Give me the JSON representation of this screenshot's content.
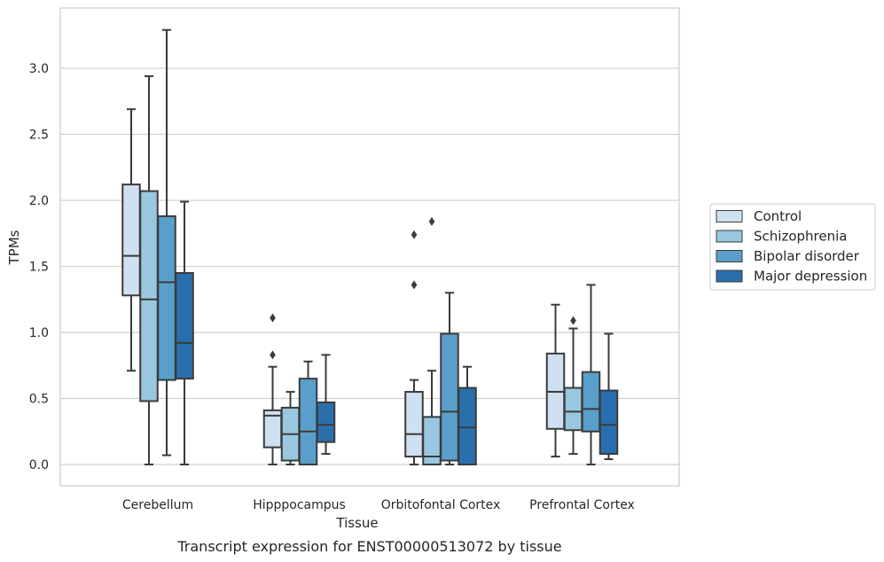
{
  "caption": "Transcript expression for ENST00000513072 by tissue",
  "chart_data": {
    "type": "box",
    "xlabel": "Tissue",
    "ylabel": "TPMs",
    "ylim": [
      -0.16,
      3.4
    ],
    "yticks": [
      0.0,
      0.5,
      1.0,
      1.5,
      2.0,
      2.5,
      3.0
    ],
    "ytick_labels": [
      "0.0",
      "0.5",
      "1.0",
      "1.5",
      "2.0",
      "2.5",
      "3.0"
    ],
    "grid": "horizontal",
    "legend_position": "right",
    "categories": [
      "Cerebellum",
      "Hipppocampus",
      "Orbitofontal Cortex",
      "Prefrontal Cortex"
    ],
    "series": [
      {
        "name": "Control",
        "color": "#cfe0f0",
        "boxes": [
          {
            "whislo": 0.71,
            "q1": 1.28,
            "med": 1.58,
            "q3": 2.12,
            "whishi": 2.69,
            "fliers": []
          },
          {
            "whislo": 0.0,
            "q1": 0.13,
            "med": 0.37,
            "q3": 0.41,
            "whishi": 0.74,
            "fliers": [
              0.83,
              1.11
            ]
          },
          {
            "whislo": 0.0,
            "q1": 0.06,
            "med": 0.23,
            "q3": 0.55,
            "whishi": 0.64,
            "fliers": [
              1.36,
              1.74
            ]
          },
          {
            "whislo": 0.06,
            "q1": 0.27,
            "med": 0.55,
            "q3": 0.84,
            "whishi": 1.21,
            "fliers": []
          }
        ]
      },
      {
        "name": "Schizophrenia",
        "color": "#9ac7e0",
        "boxes": [
          {
            "whislo": 0.0,
            "q1": 0.48,
            "med": 1.25,
            "q3": 2.07,
            "whishi": 2.94,
            "fliers": []
          },
          {
            "whislo": 0.0,
            "q1": 0.03,
            "med": 0.23,
            "q3": 0.43,
            "whishi": 0.55,
            "fliers": []
          },
          {
            "whislo": 0.0,
            "q1": 0.0,
            "med": 0.06,
            "q3": 0.36,
            "whishi": 0.71,
            "fliers": [
              1.84
            ]
          },
          {
            "whislo": 0.08,
            "q1": 0.26,
            "med": 0.4,
            "q3": 0.58,
            "whishi": 1.03,
            "fliers": [
              1.09
            ]
          }
        ]
      },
      {
        "name": "Bipolar disorder",
        "color": "#5a9fcb",
        "boxes": [
          {
            "whislo": 0.07,
            "q1": 0.64,
            "med": 1.38,
            "q3": 1.88,
            "whishi": 3.29,
            "fliers": []
          },
          {
            "whislo": 0.0,
            "q1": 0.0,
            "med": 0.25,
            "q3": 0.65,
            "whishi": 0.78,
            "fliers": []
          },
          {
            "whislo": 0.0,
            "q1": 0.03,
            "med": 0.4,
            "q3": 0.99,
            "whishi": 1.3,
            "fliers": []
          },
          {
            "whislo": 0.0,
            "q1": 0.25,
            "med": 0.42,
            "q3": 0.7,
            "whishi": 1.36,
            "fliers": []
          }
        ]
      },
      {
        "name": "Major depression",
        "color": "#2a6fad",
        "boxes": [
          {
            "whislo": 0.0,
            "q1": 0.65,
            "med": 0.92,
            "q3": 1.45,
            "whishi": 1.99,
            "fliers": []
          },
          {
            "whislo": 0.08,
            "q1": 0.17,
            "med": 0.3,
            "q3": 0.47,
            "whishi": 0.83,
            "fliers": []
          },
          {
            "whislo": 0.0,
            "q1": 0.0,
            "med": 0.28,
            "q3": 0.58,
            "whishi": 0.74,
            "fliers": []
          },
          {
            "whislo": 0.04,
            "q1": 0.08,
            "med": 0.3,
            "q3": 0.56,
            "whishi": 0.99,
            "fliers": []
          }
        ]
      }
    ]
  }
}
